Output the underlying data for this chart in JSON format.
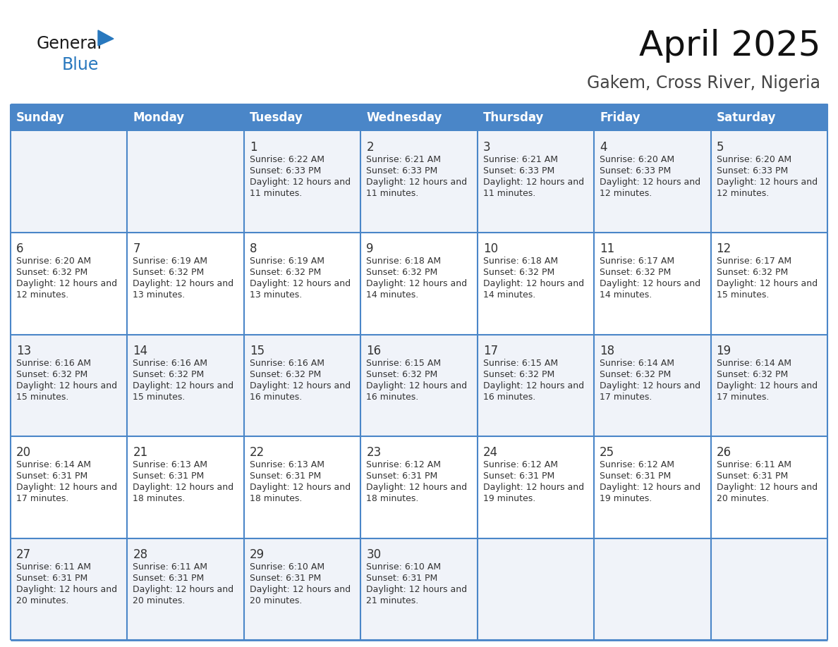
{
  "title": "April 2025",
  "subtitle": "Gakem, Cross River, Nigeria",
  "header_color": "#4a86c8",
  "header_text_color": "#ffffff",
  "row_bg_odd": "#f0f3f9",
  "row_bg_even": "#ffffff",
  "border_color": "#4a86c8",
  "text_color": "#333333",
  "days_of_week": [
    "Sunday",
    "Monday",
    "Tuesday",
    "Wednesday",
    "Thursday",
    "Friday",
    "Saturday"
  ],
  "weeks": [
    [
      {
        "day": "",
        "sunrise": "",
        "sunset": "",
        "daylight": ""
      },
      {
        "day": "",
        "sunrise": "",
        "sunset": "",
        "daylight": ""
      },
      {
        "day": "1",
        "sunrise": "6:22 AM",
        "sunset": "6:33 PM",
        "daylight": "12 hours and 11 minutes."
      },
      {
        "day": "2",
        "sunrise": "6:21 AM",
        "sunset": "6:33 PM",
        "daylight": "12 hours and 11 minutes."
      },
      {
        "day": "3",
        "sunrise": "6:21 AM",
        "sunset": "6:33 PM",
        "daylight": "12 hours and 11 minutes."
      },
      {
        "day": "4",
        "sunrise": "6:20 AM",
        "sunset": "6:33 PM",
        "daylight": "12 hours and 12 minutes."
      },
      {
        "day": "5",
        "sunrise": "6:20 AM",
        "sunset": "6:33 PM",
        "daylight": "12 hours and 12 minutes."
      }
    ],
    [
      {
        "day": "6",
        "sunrise": "6:20 AM",
        "sunset": "6:32 PM",
        "daylight": "12 hours and 12 minutes."
      },
      {
        "day": "7",
        "sunrise": "6:19 AM",
        "sunset": "6:32 PM",
        "daylight": "12 hours and 13 minutes."
      },
      {
        "day": "8",
        "sunrise": "6:19 AM",
        "sunset": "6:32 PM",
        "daylight": "12 hours and 13 minutes."
      },
      {
        "day": "9",
        "sunrise": "6:18 AM",
        "sunset": "6:32 PM",
        "daylight": "12 hours and 14 minutes."
      },
      {
        "day": "10",
        "sunrise": "6:18 AM",
        "sunset": "6:32 PM",
        "daylight": "12 hours and 14 minutes."
      },
      {
        "day": "11",
        "sunrise": "6:17 AM",
        "sunset": "6:32 PM",
        "daylight": "12 hours and 14 minutes."
      },
      {
        "day": "12",
        "sunrise": "6:17 AM",
        "sunset": "6:32 PM",
        "daylight": "12 hours and 15 minutes."
      }
    ],
    [
      {
        "day": "13",
        "sunrise": "6:16 AM",
        "sunset": "6:32 PM",
        "daylight": "12 hours and 15 minutes."
      },
      {
        "day": "14",
        "sunrise": "6:16 AM",
        "sunset": "6:32 PM",
        "daylight": "12 hours and 15 minutes."
      },
      {
        "day": "15",
        "sunrise": "6:16 AM",
        "sunset": "6:32 PM",
        "daylight": "12 hours and 16 minutes."
      },
      {
        "day": "16",
        "sunrise": "6:15 AM",
        "sunset": "6:32 PM",
        "daylight": "12 hours and 16 minutes."
      },
      {
        "day": "17",
        "sunrise": "6:15 AM",
        "sunset": "6:32 PM",
        "daylight": "12 hours and 16 minutes."
      },
      {
        "day": "18",
        "sunrise": "6:14 AM",
        "sunset": "6:32 PM",
        "daylight": "12 hours and 17 minutes."
      },
      {
        "day": "19",
        "sunrise": "6:14 AM",
        "sunset": "6:32 PM",
        "daylight": "12 hours and 17 minutes."
      }
    ],
    [
      {
        "day": "20",
        "sunrise": "6:14 AM",
        "sunset": "6:31 PM",
        "daylight": "12 hours and 17 minutes."
      },
      {
        "day": "21",
        "sunrise": "6:13 AM",
        "sunset": "6:31 PM",
        "daylight": "12 hours and 18 minutes."
      },
      {
        "day": "22",
        "sunrise": "6:13 AM",
        "sunset": "6:31 PM",
        "daylight": "12 hours and 18 minutes."
      },
      {
        "day": "23",
        "sunrise": "6:12 AM",
        "sunset": "6:31 PM",
        "daylight": "12 hours and 18 minutes."
      },
      {
        "day": "24",
        "sunrise": "6:12 AM",
        "sunset": "6:31 PM",
        "daylight": "12 hours and 19 minutes."
      },
      {
        "day": "25",
        "sunrise": "6:12 AM",
        "sunset": "6:31 PM",
        "daylight": "12 hours and 19 minutes."
      },
      {
        "day": "26",
        "sunrise": "6:11 AM",
        "sunset": "6:31 PM",
        "daylight": "12 hours and 20 minutes."
      }
    ],
    [
      {
        "day": "27",
        "sunrise": "6:11 AM",
        "sunset": "6:31 PM",
        "daylight": "12 hours and 20 minutes."
      },
      {
        "day": "28",
        "sunrise": "6:11 AM",
        "sunset": "6:31 PM",
        "daylight": "12 hours and 20 minutes."
      },
      {
        "day": "29",
        "sunrise": "6:10 AM",
        "sunset": "6:31 PM",
        "daylight": "12 hours and 20 minutes."
      },
      {
        "day": "30",
        "sunrise": "6:10 AM",
        "sunset": "6:31 PM",
        "daylight": "12 hours and 21 minutes."
      },
      {
        "day": "",
        "sunrise": "",
        "sunset": "",
        "daylight": ""
      },
      {
        "day": "",
        "sunrise": "",
        "sunset": "",
        "daylight": ""
      },
      {
        "day": "",
        "sunrise": "",
        "sunset": "",
        "daylight": ""
      }
    ]
  ],
  "logo_general_color": "#1a1a1a",
  "logo_blue_color": "#2878be",
  "logo_triangle_color": "#2878be",
  "title_fontsize": 36,
  "subtitle_fontsize": 17,
  "header_fontsize": 12,
  "day_num_fontsize": 12,
  "cell_text_fontsize": 9
}
